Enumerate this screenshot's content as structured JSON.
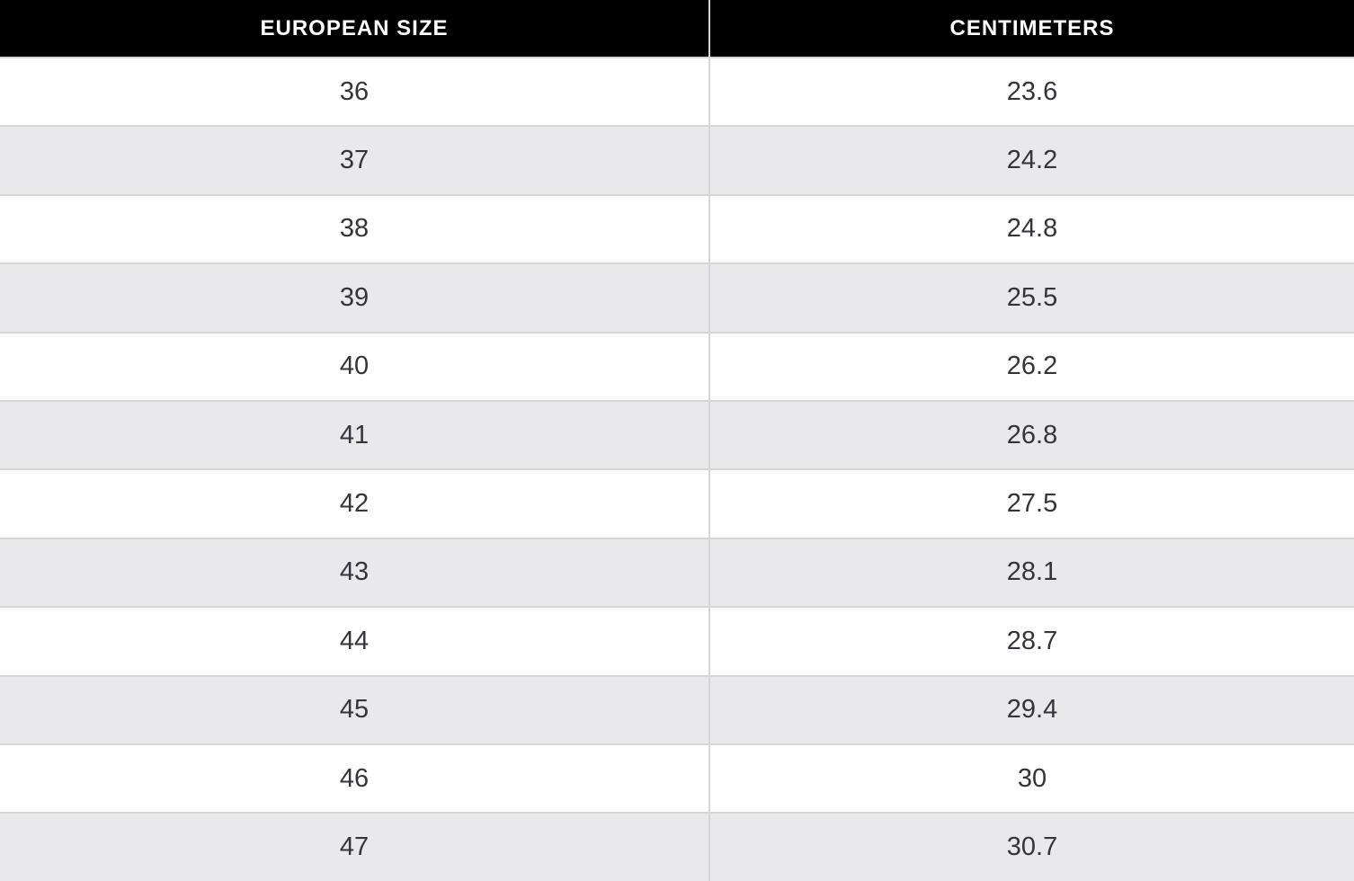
{
  "colors": {
    "header_bg": "#000000",
    "header_text": "#ffffff",
    "row_bg": "#ffffff",
    "row_alt_bg": "#e9e8ea",
    "border": "#d6d6d8",
    "cell_text": "#34343c"
  },
  "table": {
    "columns": [
      "EUROPEAN SIZE",
      "CENTIMETERS"
    ],
    "rows": [
      [
        "36",
        "23.6"
      ],
      [
        "37",
        "24.2"
      ],
      [
        "38",
        "24.8"
      ],
      [
        "39",
        "25.5"
      ],
      [
        "40",
        "26.2"
      ],
      [
        "41",
        "26.8"
      ],
      [
        "42",
        "27.5"
      ],
      [
        "43",
        "28.1"
      ],
      [
        "44",
        "28.7"
      ],
      [
        "45",
        "29.4"
      ],
      [
        "46",
        "30"
      ],
      [
        "47",
        "30.7"
      ]
    ]
  },
  "chart_data": {
    "type": "table",
    "columns": [
      "EUROPEAN SIZE",
      "CENTIMETERS"
    ],
    "rows": [
      [
        36,
        23.6
      ],
      [
        37,
        24.2
      ],
      [
        38,
        24.8
      ],
      [
        39,
        25.5
      ],
      [
        40,
        26.2
      ],
      [
        41,
        26.8
      ],
      [
        42,
        27.5
      ],
      [
        43,
        28.1
      ],
      [
        44,
        28.7
      ],
      [
        45,
        29.4
      ],
      [
        46,
        30
      ],
      [
        47,
        30.7
      ]
    ]
  }
}
